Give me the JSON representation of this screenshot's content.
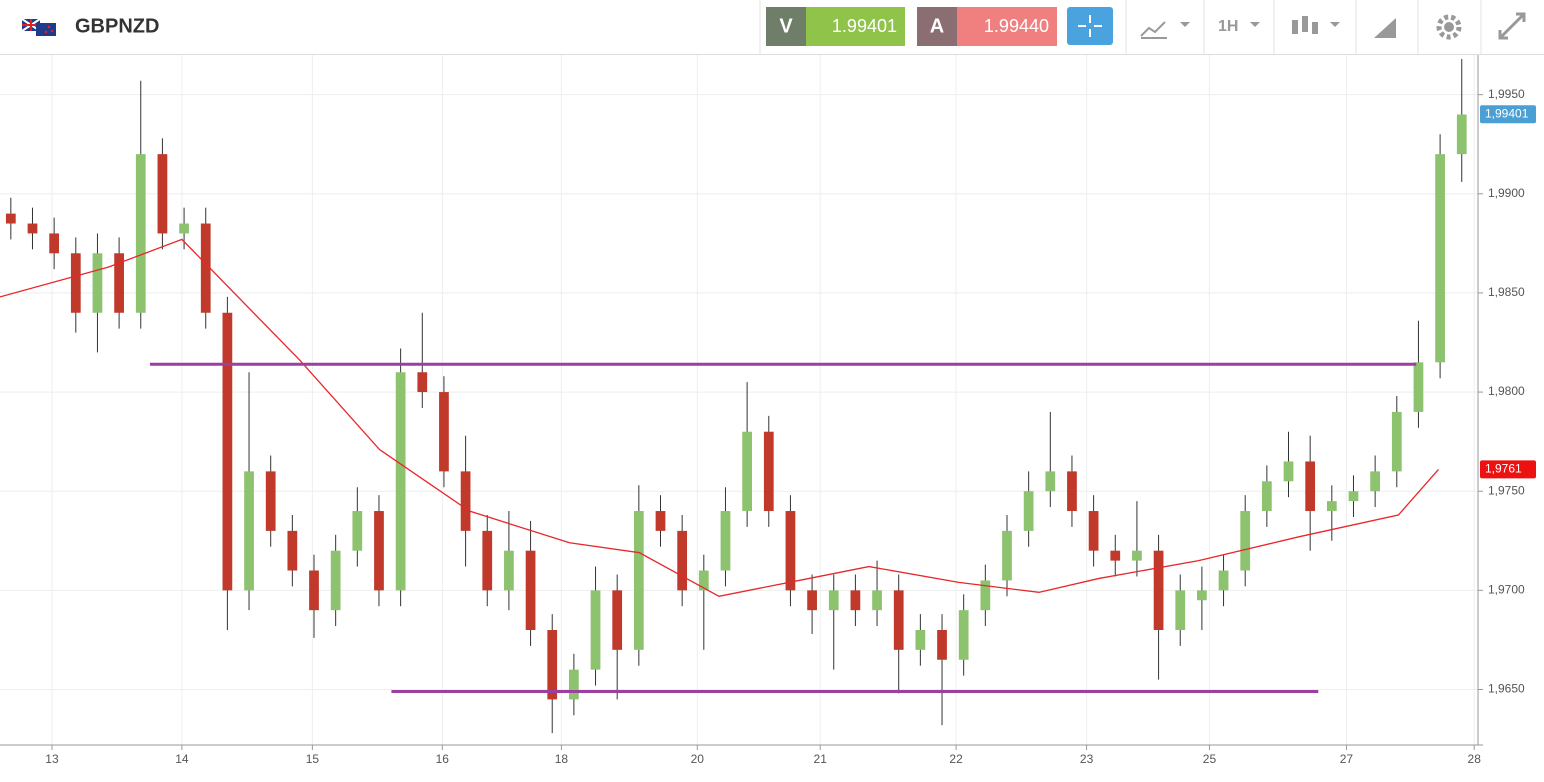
{
  "toolbar": {
    "symbol": "GBPNZD",
    "bid_letter": "V",
    "bid_price": "1.99401",
    "ask_letter": "A",
    "ask_price": "1.99440",
    "timeframe": "1H"
  },
  "chart_data": {
    "type": "candlestick",
    "x": [
      2,
      6,
      10,
      14,
      18,
      22,
      26,
      30,
      34,
      38,
      42,
      46,
      50,
      54,
      58,
      62,
      66,
      70,
      74,
      78,
      82,
      86,
      90,
      94,
      98,
      102,
      106,
      110,
      114,
      118,
      122,
      126,
      130,
      134,
      138,
      142,
      146,
      150,
      154,
      158,
      162,
      166,
      170,
      174,
      178,
      182,
      186,
      190,
      194,
      198,
      202,
      206,
      210,
      214,
      218,
      222,
      226,
      230,
      234,
      238,
      242,
      246,
      250,
      254,
      258,
      262,
      266,
      270
    ],
    "open": [
      1.989,
      1.9885,
      1.988,
      1.987,
      1.984,
      1.987,
      1.984,
      1.992,
      1.988,
      1.9885,
      1.984,
      1.97,
      1.976,
      1.973,
      1.971,
      1.969,
      1.972,
      1.974,
      1.97,
      1.981,
      1.98,
      1.976,
      1.973,
      1.97,
      1.972,
      1.968,
      1.9645,
      1.966,
      1.97,
      1.967,
      1.974,
      1.973,
      1.97,
      1.971,
      1.974,
      1.978,
      1.974,
      1.97,
      1.969,
      1.97,
      1.969,
      1.97,
      1.967,
      1.968,
      1.9665,
      1.969,
      1.9705,
      1.973,
      1.975,
      1.976,
      1.974,
      1.972,
      1.9715,
      1.972,
      1.968,
      1.9695,
      1.97,
      1.971,
      1.974,
      1.9755,
      1.9765,
      1.974,
      1.9745,
      1.975,
      1.976,
      1.979,
      1.9815,
      1.992
    ],
    "high": [
      1.9898,
      1.9893,
      1.9888,
      1.9878,
      1.988,
      1.9878,
      1.9957,
      1.9928,
      1.9893,
      1.9893,
      1.9848,
      1.981,
      1.9768,
      1.9738,
      1.9718,
      1.9728,
      1.9752,
      1.9748,
      1.9822,
      1.984,
      1.9808,
      1.9778,
      1.9738,
      1.974,
      1.9735,
      1.9688,
      1.9668,
      1.9712,
      1.9708,
      1.9753,
      1.9748,
      1.9738,
      1.9718,
      1.9752,
      1.9805,
      1.9788,
      1.9748,
      1.9708,
      1.9708,
      1.9708,
      1.9715,
      1.9708,
      1.9688,
      1.9688,
      1.9698,
      1.9713,
      1.9738,
      1.976,
      1.979,
      1.9768,
      1.9748,
      1.9728,
      1.9745,
      1.9728,
      1.9708,
      1.9712,
      1.9718,
      1.9748,
      1.9763,
      1.978,
      1.9778,
      1.9753,
      1.9758,
      1.9768,
      1.9798,
      1.9836,
      1.993,
      1.9968
    ],
    "low": [
      1.9877,
      1.9872,
      1.9862,
      1.983,
      1.982,
      1.9832,
      1.9832,
      1.9872,
      1.9872,
      1.9832,
      1.968,
      1.969,
      1.9722,
      1.9702,
      1.9676,
      1.9682,
      1.9712,
      1.9692,
      1.9692,
      1.9792,
      1.9752,
      1.9712,
      1.9692,
      1.969,
      1.9672,
      1.9628,
      1.9637,
      1.9652,
      1.9645,
      1.9662,
      1.9722,
      1.9692,
      1.967,
      1.9702,
      1.9732,
      1.9732,
      1.9692,
      1.9678,
      1.966,
      1.9682,
      1.9682,
      1.9648,
      1.9662,
      1.9632,
      1.9657,
      1.9682,
      1.9697,
      1.9722,
      1.9742,
      1.9732,
      1.9712,
      1.9707,
      1.9707,
      1.9655,
      1.9672,
      1.968,
      1.9692,
      1.9702,
      1.9732,
      1.9747,
      1.972,
      1.9725,
      1.9737,
      1.9742,
      1.9752,
      1.9782,
      1.9807,
      1.9906
    ],
    "close": [
      1.9885,
      1.988,
      1.987,
      1.984,
      1.987,
      1.984,
      1.992,
      1.988,
      1.9885,
      1.984,
      1.97,
      1.976,
      1.973,
      1.971,
      1.969,
      1.972,
      1.974,
      1.97,
      1.981,
      1.98,
      1.976,
      1.973,
      1.97,
      1.972,
      1.968,
      1.9645,
      1.966,
      1.97,
      1.967,
      1.974,
      1.973,
      1.97,
      1.971,
      1.974,
      1.978,
      1.974,
      1.97,
      1.969,
      1.97,
      1.969,
      1.97,
      1.967,
      1.968,
      1.9665,
      1.969,
      1.9705,
      1.973,
      1.975,
      1.976,
      1.974,
      1.972,
      1.9715,
      1.972,
      1.968,
      1.97,
      1.97,
      1.971,
      1.974,
      1.9755,
      1.9765,
      1.974,
      1.9745,
      1.975,
      1.976,
      1.979,
      1.9815,
      1.992,
      1.994
    ],
    "up_color": "#8dc26f",
    "down_color": "#c0392b",
    "ma": {
      "color": "#e8272a",
      "x": [
        0,
        20,
        33.6,
        55.4,
        70.1,
        86.7,
        105.2,
        118.1,
        132.8,
        147.6,
        160.5,
        177.1,
        191.9,
        203,
        221.4,
        239.9,
        258.3,
        265.7
      ],
      "values": [
        1.9848,
        1.9863,
        1.9877,
        1.9816,
        1.9771,
        1.974,
        1.9724,
        1.9719,
        1.9697,
        1.9705,
        1.9712,
        1.9704,
        1.9699,
        1.9706,
        1.9715,
        1.9727,
        1.9738,
        1.9761
      ]
    },
    "levels": [
      {
        "value": 1.9814,
        "x": [
          27.7,
          261.6
        ]
      },
      {
        "value": 1.9649,
        "x": [
          72.3,
          243.5
        ]
      }
    ],
    "level_color": "#9b3fa0",
    "price_tags": [
      {
        "value": 1.99401,
        "label": "1,99401",
        "color": "#4a9fd5"
      },
      {
        "value": 1.9761,
        "label": "1,9761",
        "color": "#ee1111"
      }
    ],
    "xlim": [
      0,
      273
    ],
    "xticks": [
      {
        "value": 9.6,
        "label": "13"
      },
      {
        "value": 33.6,
        "label": "14"
      },
      {
        "value": 57.7,
        "label": "15"
      },
      {
        "value": 81.7,
        "label": "16"
      },
      {
        "value": 103.7,
        "label": "18"
      },
      {
        "value": 128.8,
        "label": "20"
      },
      {
        "value": 151.5,
        "label": "21"
      },
      {
        "value": 176.6,
        "label": "22"
      },
      {
        "value": 200.7,
        "label": "23"
      },
      {
        "value": 223.4,
        "label": "25"
      },
      {
        "value": 248.7,
        "label": "27"
      },
      {
        "value": 272.3,
        "label": "28"
      }
    ],
    "ylim": [
      1.9622,
      1.997
    ],
    "yticks": [
      {
        "value": 1.965,
        "label": "1,9650"
      },
      {
        "value": 1.97,
        "label": "1,9700"
      },
      {
        "value": 1.975,
        "label": "1,9750"
      },
      {
        "value": 1.98,
        "label": "1,9800"
      },
      {
        "value": 1.985,
        "label": "1,9850"
      },
      {
        "value": 1.99,
        "label": "1,9900"
      },
      {
        "value": 1.995,
        "label": "1,9950"
      }
    ],
    "grid": true
  }
}
